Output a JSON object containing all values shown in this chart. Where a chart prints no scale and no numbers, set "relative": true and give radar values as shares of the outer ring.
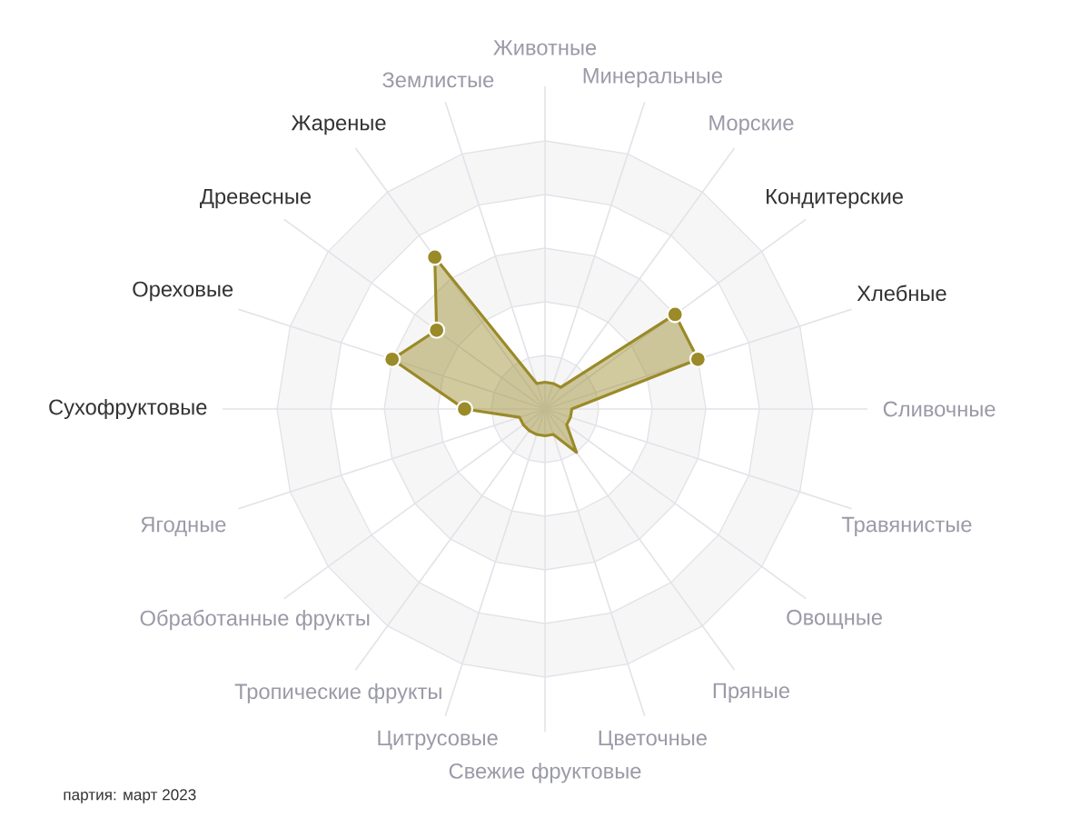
{
  "chart_data": {
    "type": "radar",
    "relative": true,
    "grid": true,
    "marker": "circle",
    "categories": [
      "Животные",
      "Минеральные",
      "Морские",
      "Кондитерские",
      "Хлебные",
      "Сливочные",
      "Травянистые",
      "Овощные",
      "Пряные",
      "Цветочные",
      "Свежие фруктовые",
      "Цитрусовые",
      "Тропические фрукты",
      "Обработанные фрукты",
      "Ягодные",
      "Сухофруктовые",
      "Ореховые",
      "Древесные",
      "Жареные",
      "Землистые"
    ],
    "series": [
      {
        "color": "#9a8a28",
        "values": [
          0.1,
          0.1,
          0.1,
          0.6,
          0.6,
          0.1,
          0.1,
          0.1,
          0.2,
          0.1,
          0.1,
          0.1,
          0.1,
          0.1,
          0.1,
          0.3,
          0.6,
          0.5,
          0.7,
          0.1
        ]
      }
    ],
    "annotations": [
      "партия: март 2023"
    ]
  }
}
